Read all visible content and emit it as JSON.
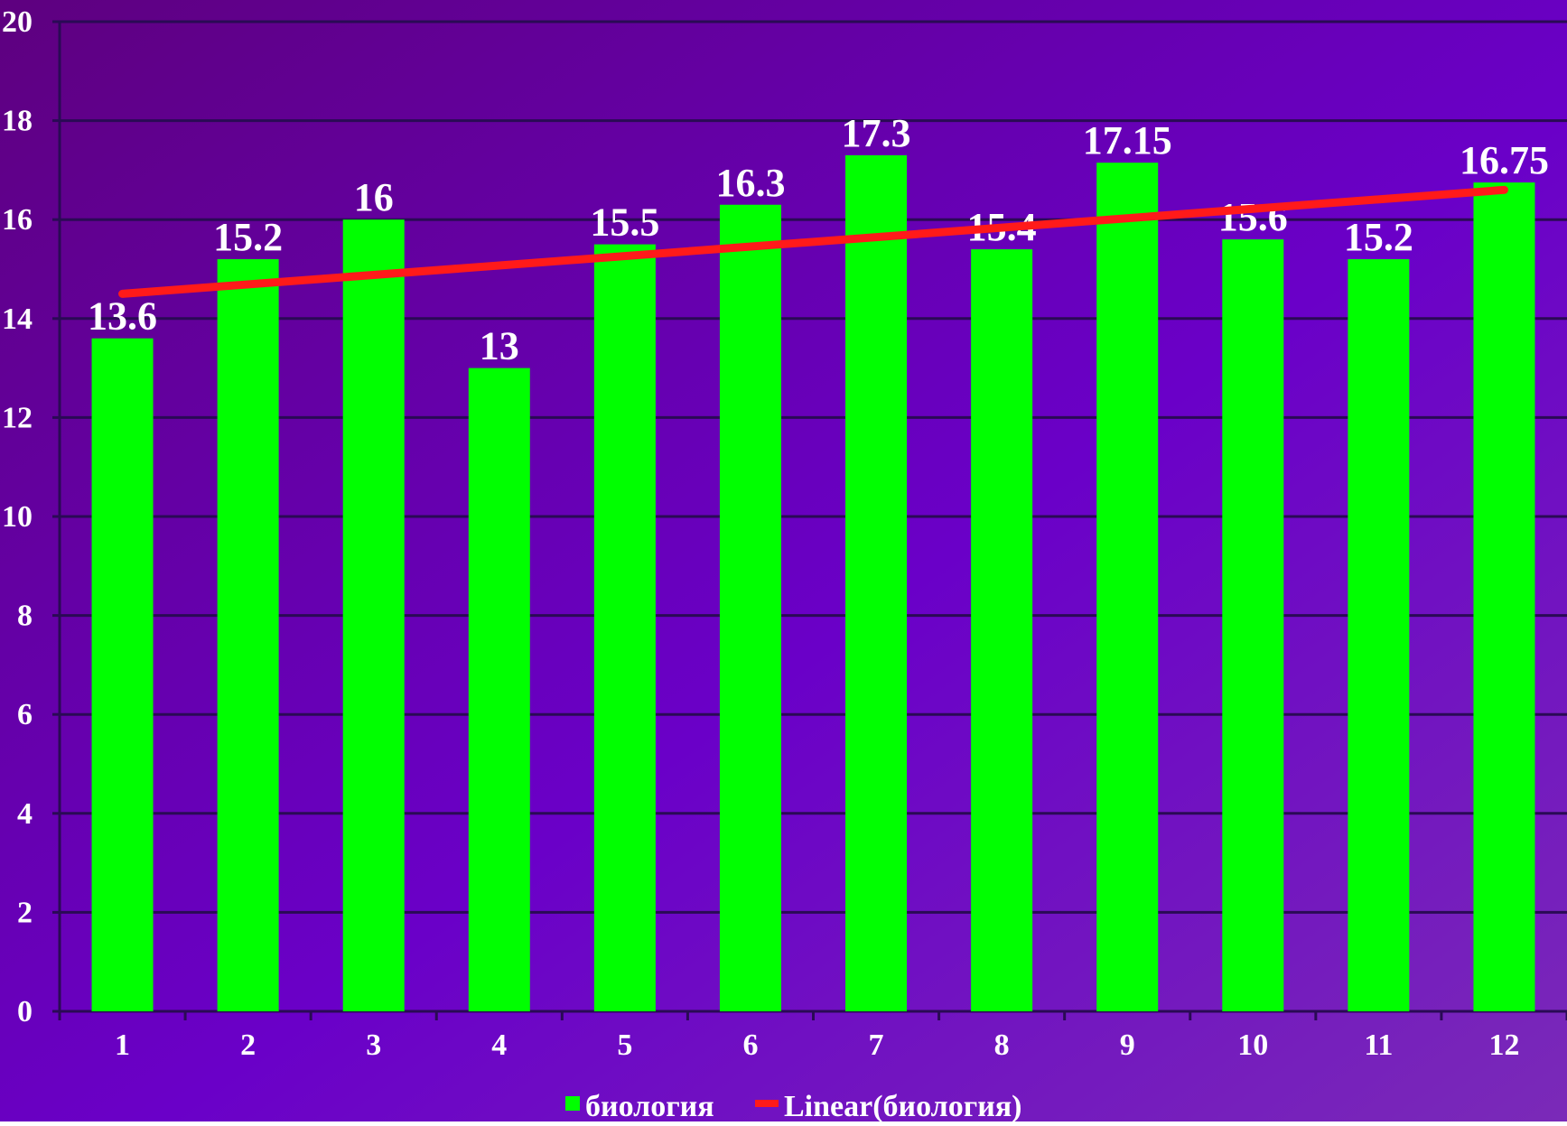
{
  "chart_data": {
    "type": "bar",
    "title": "",
    "xlabel": "",
    "ylabel": "",
    "categories": [
      "1",
      "2",
      "3",
      "4",
      "5",
      "6",
      "7",
      "8",
      "9",
      "10",
      "11",
      "12"
    ],
    "series": [
      {
        "name": "биология",
        "values": [
          13.6,
          15.2,
          16,
          13,
          15.5,
          16.3,
          17.3,
          15.4,
          17.15,
          15.6,
          15.2,
          16.75
        ],
        "data_labels": [
          "13.6",
          "15.2",
          "16",
          "13",
          "15.5",
          "16.3",
          "17.3",
          "15.4",
          "17.15",
          "15.6",
          "15.2",
          "16.75"
        ],
        "color": "#00ff00"
      }
    ],
    "trendline": {
      "name": "Linear(биология)",
      "type": "linear",
      "start": 14.5,
      "end": 16.6,
      "color": "#ff1a1a"
    },
    "ylim": [
      0,
      20
    ],
    "yticks": [
      "0",
      "2",
      "4",
      "6",
      "8",
      "10",
      "12",
      "14",
      "16",
      "18",
      "20"
    ],
    "grid": true,
    "legend": "bottom-center",
    "background_colors": [
      "#5e007f",
      "#6a00c8",
      "#7a2ab8"
    ]
  }
}
